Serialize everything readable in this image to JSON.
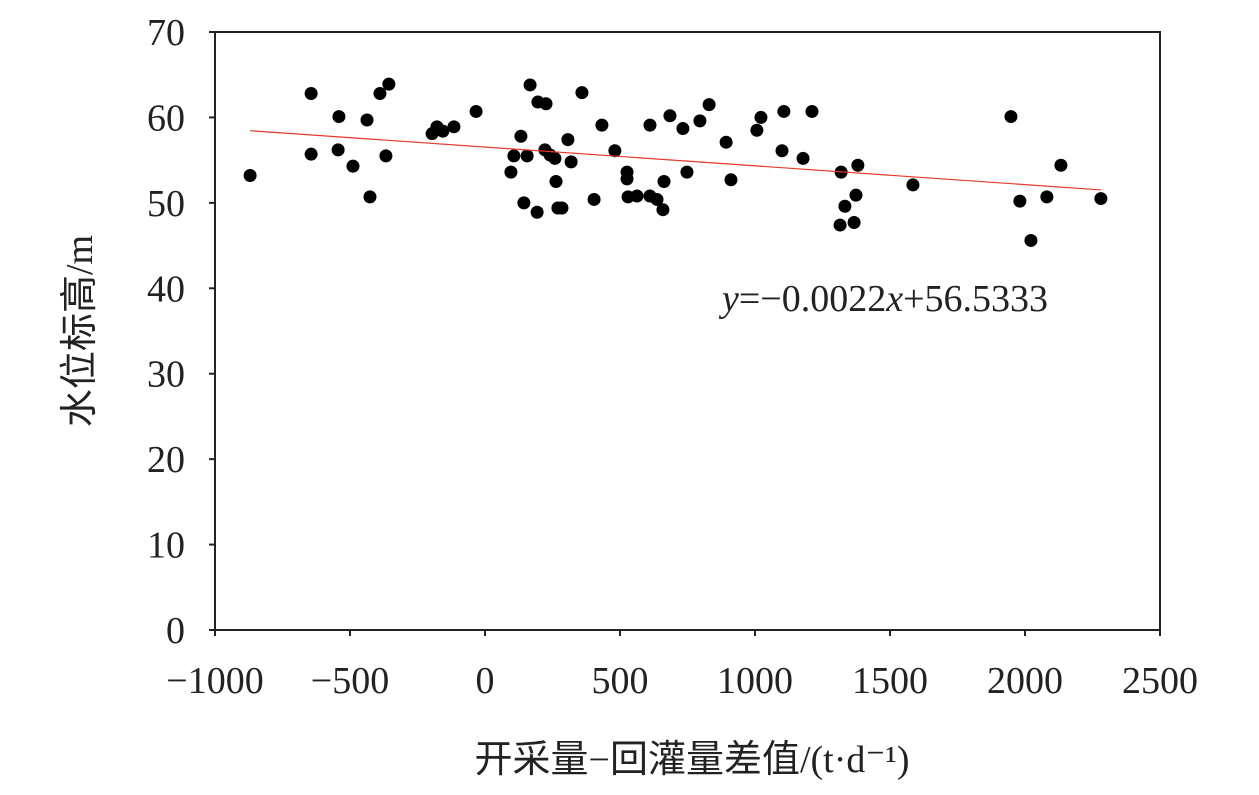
{
  "chart_data": {
    "type": "scatter",
    "title": "",
    "xlabel": "开采量−回灌量差值/(t·d⁻¹)",
    "ylabel": "水位标高/m",
    "xlim": [
      -1000,
      2500
    ],
    "ylim": [
      0,
      70
    ],
    "xticks": [
      -1000,
      -500,
      0,
      500,
      1000,
      1500,
      2000,
      2500
    ],
    "xtick_labels": [
      "−1000",
      "−500",
      "0",
      "500",
      "1000",
      "1500",
      "2000",
      "2500"
    ],
    "yticks": [
      0,
      10,
      20,
      30,
      40,
      50,
      60,
      70
    ],
    "grid": false,
    "point_color": "#000000",
    "trend_color": "#e8392a",
    "trendline": {
      "slope": -0.0022,
      "intercept": 56.5333,
      "x_range": [
        -870,
        2281
      ]
    },
    "equation_label": {
      "y": "y",
      "eq1": "=−0.0022",
      "x": "x",
      "eq2": "+56.5333"
    },
    "points": [
      [
        -870,
        53.2
      ],
      [
        -644,
        62.8
      ],
      [
        -644,
        55.7
      ],
      [
        -541,
        60.1
      ],
      [
        -544,
        56.2
      ],
      [
        -489,
        54.3
      ],
      [
        -437,
        59.7
      ],
      [
        -426,
        50.7
      ],
      [
        -389,
        62.8
      ],
      [
        -356,
        63.9
      ],
      [
        -367,
        55.5
      ],
      [
        -196,
        58.1
      ],
      [
        -178,
        58.9
      ],
      [
        -156,
        58.4
      ],
      [
        -115,
        58.9
      ],
      [
        -33,
        60.7
      ],
      [
        96,
        53.6
      ],
      [
        107,
        55.5
      ],
      [
        133,
        57.8
      ],
      [
        144,
        50.0
      ],
      [
        156,
        55.5
      ],
      [
        167,
        63.8
      ],
      [
        193,
        48.9
      ],
      [
        196,
        61.8
      ],
      [
        226,
        61.6
      ],
      [
        222,
        56.2
      ],
      [
        241,
        55.6
      ],
      [
        259,
        55.2
      ],
      [
        263,
        52.5
      ],
      [
        270,
        49.4
      ],
      [
        285,
        49.4
      ],
      [
        307,
        57.4
      ],
      [
        319,
        54.8
      ],
      [
        359,
        62.9
      ],
      [
        404,
        50.4
      ],
      [
        433,
        59.1
      ],
      [
        481,
        56.1
      ],
      [
        526,
        53.6
      ],
      [
        526,
        52.8
      ],
      [
        530,
        50.7
      ],
      [
        563,
        50.8
      ],
      [
        611,
        59.1
      ],
      [
        611,
        50.8
      ],
      [
        637,
        50.4
      ],
      [
        663,
        52.5
      ],
      [
        659,
        49.2
      ],
      [
        685,
        60.2
      ],
      [
        733,
        58.7
      ],
      [
        748,
        53.6
      ],
      [
        796,
        59.6
      ],
      [
        830,
        61.5
      ],
      [
        893,
        57.1
      ],
      [
        911,
        52.7
      ],
      [
        1007,
        58.5
      ],
      [
        1022,
        60.0
      ],
      [
        1107,
        60.7
      ],
      [
        1100,
        56.1
      ],
      [
        1178,
        55.2
      ],
      [
        1211,
        60.7
      ],
      [
        1319,
        53.6
      ],
      [
        1315,
        47.4
      ],
      [
        1333,
        49.6
      ],
      [
        1367,
        47.7
      ],
      [
        1374,
        50.9
      ],
      [
        1381,
        54.4
      ],
      [
        1585,
        52.1
      ],
      [
        1948,
        60.1
      ],
      [
        1981,
        50.2
      ],
      [
        2022,
        45.6
      ],
      [
        2081,
        50.7
      ],
      [
        2133,
        54.4
      ],
      [
        2281,
        50.5
      ]
    ]
  }
}
